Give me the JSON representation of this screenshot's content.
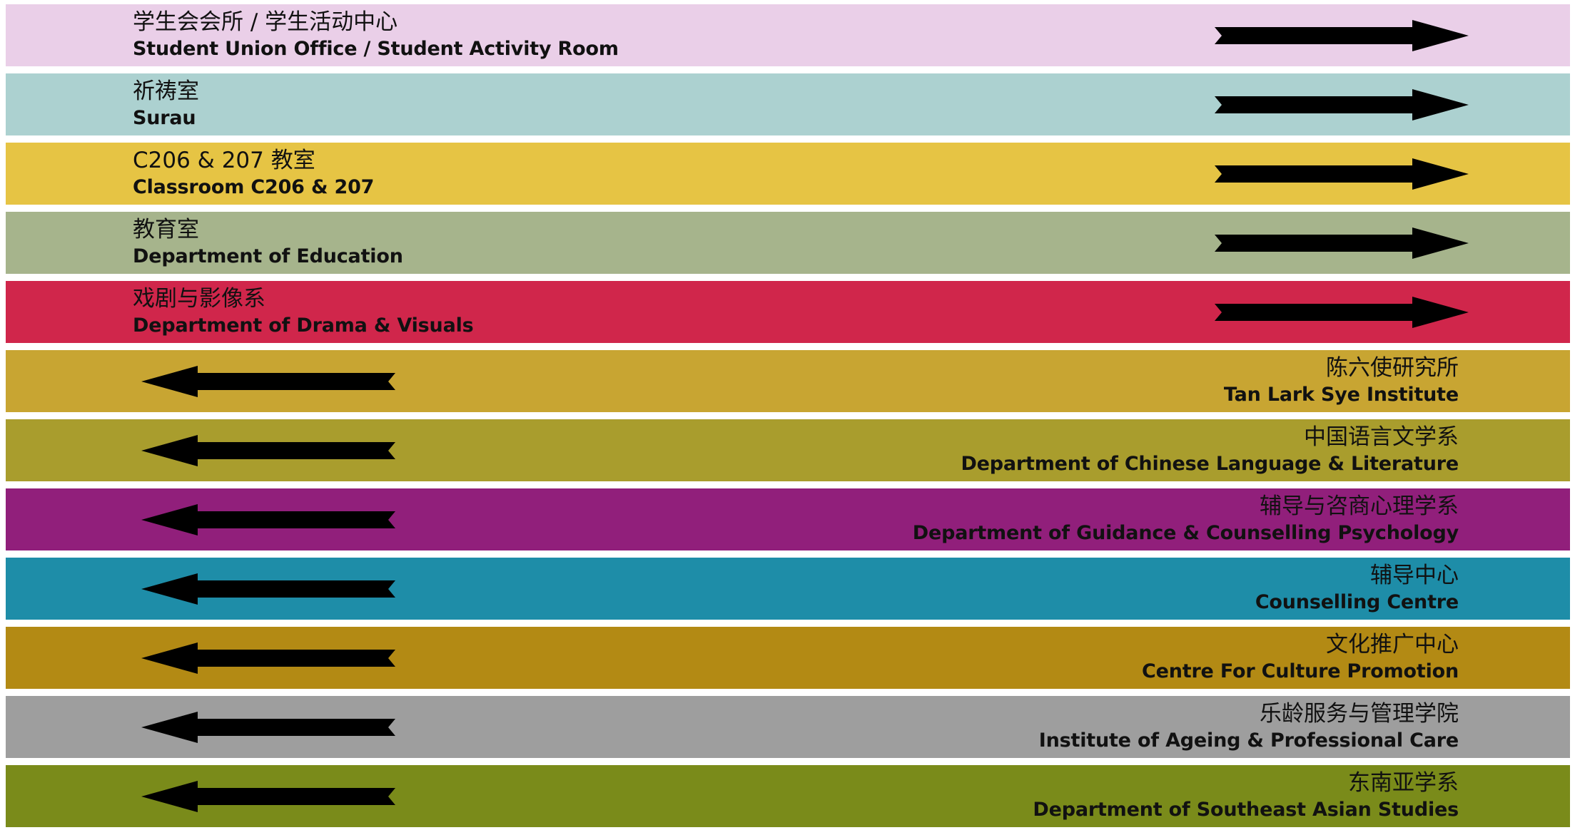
{
  "rows": [
    {
      "zh": "学生会会所 / 学生活动中心",
      "en": "Student Union Office / Student Activity Room",
      "direction": "right",
      "color": "#EACFE8",
      "arrow_icon": "arrow-right-icon"
    },
    {
      "zh": "祈祷室",
      "en": "Surau",
      "direction": "right",
      "color": "#ACD1D0",
      "arrow_icon": "arrow-right-icon"
    },
    {
      "zh": "C206 & 207 教室",
      "en": "Classroom C206 & 207",
      "direction": "right",
      "color": "#E6C444",
      "arrow_icon": "arrow-right-icon"
    },
    {
      "zh": "教育室",
      "en": "Department of Education",
      "direction": "right",
      "color": "#A6B48C",
      "arrow_icon": "arrow-right-icon"
    },
    {
      "zh": "戏剧与影像系",
      "en": "Department of Drama & Visuals",
      "direction": "right",
      "color": "#D0264B",
      "arrow_icon": "arrow-right-icon"
    },
    {
      "zh": "陈六使研究所",
      "en": "Tan Lark Sye Institute",
      "direction": "left",
      "color": "#C8A532",
      "arrow_icon": "arrow-left-icon"
    },
    {
      "zh": "中国语言文学系",
      "en": "Department of Chinese Language & Literature",
      "direction": "left",
      "color": "#A99D2D",
      "arrow_icon": "arrow-left-icon"
    },
    {
      "zh": "辅导与咨商心理学系",
      "en": "Department of Guidance & Counselling Psychology",
      "direction": "left",
      "color": "#911F7B",
      "arrow_icon": "arrow-left-icon"
    },
    {
      "zh": "辅导中心",
      "en": "Counselling Centre",
      "direction": "left",
      "color": "#1E8DA8",
      "arrow_icon": "arrow-left-icon"
    },
    {
      "zh": "文化推广中心",
      "en": "Centre For Culture Promotion",
      "direction": "left",
      "color": "#B38A14",
      "arrow_icon": "arrow-left-icon"
    },
    {
      "zh": "乐龄服务与管理学院",
      "en": "Institute of Ageing & Professional Care",
      "direction": "left",
      "color": "#9E9E9E",
      "arrow_icon": "arrow-left-icon"
    },
    {
      "zh": "东南亚学系",
      "en": "Department of Southeast Asian Studies",
      "direction": "left",
      "color": "#7A8B1A",
      "arrow_icon": "arrow-left-icon"
    }
  ]
}
